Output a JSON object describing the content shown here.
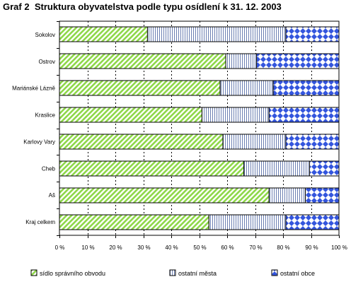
{
  "title": {
    "prefix": "Graf 2",
    "text": "Struktura obyvatelstva podle typu osídlení k 31. 12. 2003"
  },
  "chart_data": {
    "type": "bar",
    "orientation": "horizontal",
    "stacked": true,
    "percent_stacked": true,
    "title": "Graf 2  Struktura obyvatelstva podle typu osídlení k 31. 12. 2003",
    "categories": [
      "Sokolov",
      "Ostrov",
      "Mariánské Lázně",
      "Kraslice",
      "Karlovy Vary",
      "Cheb",
      "Aš",
      "Kraj celkem"
    ],
    "series": [
      {
        "name": "sídlo správního obvodu",
        "pattern": "diagonal-stripes",
        "color": "#99e64d",
        "values": [
          31.5,
          59.5,
          57.5,
          51,
          58.5,
          66,
          75,
          53.5
        ]
      },
      {
        "name": "ostatní města",
        "pattern": "vertical-lines",
        "color": "#6b7fb2",
        "values": [
          49.5,
          11,
          19,
          24,
          22.5,
          23.5,
          13,
          27.5
        ]
      },
      {
        "name": "ostatní obce",
        "pattern": "diamond-checker",
        "color": "#3355dd",
        "values": [
          19,
          29.5,
          23.5,
          25,
          19,
          10.5,
          12,
          19
        ]
      }
    ],
    "x_ticks": [
      "0 %",
      "10 %",
      "20 %",
      "30 %",
      "40 %",
      "50 %",
      "60 %",
      "70 %",
      "80 %",
      "90 %",
      "100 %"
    ],
    "xlim": [
      0,
      100
    ],
    "xlabel": "",
    "ylabel": "",
    "grid": "vertical dashed",
    "legend": "bottom"
  }
}
